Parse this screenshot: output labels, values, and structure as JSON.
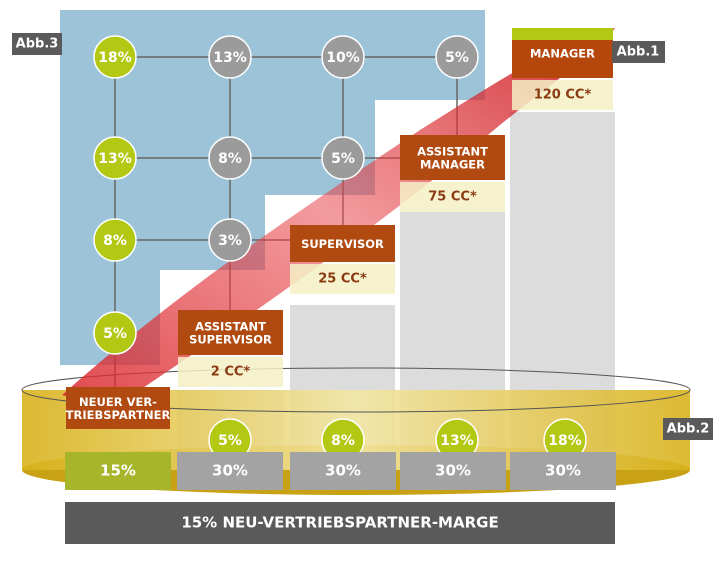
{
  "labels": {
    "abb3": "Abb.3",
    "abb1": "Abb.1",
    "abb2": "Abb.2"
  },
  "grid": [
    [
      "18%",
      "13%",
      "10%",
      "5%"
    ],
    [
      "13%",
      "8%",
      "5%"
    ],
    [
      "8%",
      "3%"
    ],
    [
      "5%"
    ]
  ],
  "ranks": [
    {
      "lines": [
        "NEUER VER-",
        "TRIEBSPARTNER"
      ]
    },
    {
      "lines": [
        "ASSISTANT",
        "SUPERVISOR"
      ],
      "cc": "2 CC*"
    },
    {
      "lines": [
        "SUPERVISOR"
      ],
      "cc": "25 CC*"
    },
    {
      "lines": [
        "ASSISTANT",
        "MANAGER"
      ],
      "cc": "75 CC*"
    },
    {
      "lines": [
        "MANAGER"
      ],
      "cc": "120 CC*"
    }
  ],
  "bonus": [
    "5%",
    "8%",
    "13%",
    "18%"
  ],
  "margins": [
    "15%",
    "30%",
    "30%",
    "30%",
    "30%"
  ],
  "footer": "15% NEU-VERTRIEBSPARTNER-MARGE"
}
